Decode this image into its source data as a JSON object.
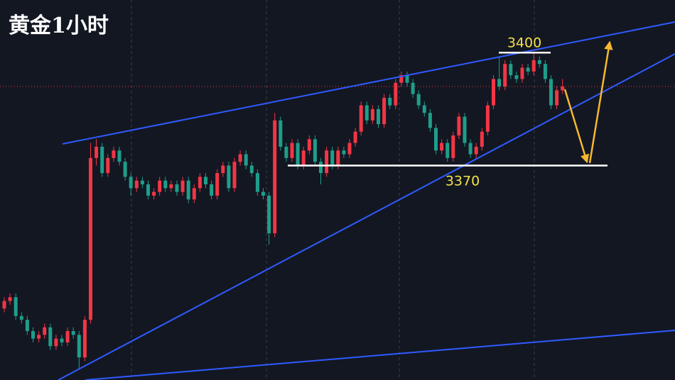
{
  "chart_data": {
    "type": "candlestick",
    "title": "黄金1小时",
    "up_color": "#f23645",
    "down_color": "#1f9e8a",
    "ylim": [
      3313,
      3414
    ],
    "levels": [
      3400,
      3370
    ],
    "last_price": 3391,
    "open": [
      3332,
      3334,
      3335,
      3330,
      3329,
      3326,
      3324,
      3325,
      3327,
      3322,
      3324,
      3323,
      3326,
      3325,
      3319,
      3329,
      3372,
      3375,
      3368,
      3372,
      3374,
      3371,
      3367,
      3364,
      3366,
      3365,
      3362,
      3363,
      3366,
      3364,
      3365,
      3363,
      3366,
      3361,
      3364,
      3367,
      3365,
      3362,
      3368,
      3370,
      3364,
      3371,
      3373,
      3370,
      3368,
      3363,
      3362,
      3352,
      3382,
      3375,
      3372,
      3376,
      3370,
      3374,
      3377,
      3371,
      3368,
      3374,
      3370,
      3374,
      3373,
      3376,
      3379,
      3386,
      3382,
      3385,
      3381,
      3388,
      3386,
      3392,
      3394,
      3392,
      3389,
      3386,
      3384,
      3380,
      3374,
      3376,
      3372,
      3378,
      3383,
      3376,
      3373,
      3375,
      3379,
      3386,
      3393,
      3391,
      3397,
      3394,
      3393,
      3396,
      3395,
      3398,
      3397,
      3393,
      3386,
      3390
    ],
    "high": [
      3335,
      3336,
      3336,
      3331,
      3330,
      3327,
      3326,
      3328,
      3328,
      3325,
      3325,
      3327,
      3327,
      3326,
      3330,
      3376,
      3377,
      3376,
      3373,
      3375,
      3375,
      3372,
      3368,
      3367,
      3367,
      3366,
      3364,
      3367,
      3367,
      3366,
      3366,
      3367,
      3367,
      3365,
      3368,
      3368,
      3366,
      3369,
      3371,
      3371,
      3372,
      3374,
      3374,
      3371,
      3369,
      3364,
      3363,
      3384,
      3383,
      3376,
      3377,
      3377,
      3375,
      3378,
      3378,
      3372,
      3375,
      3375,
      3375,
      3375,
      3377,
      3380,
      3387,
      3387,
      3386,
      3386,
      3389,
      3389,
      3393,
      3395,
      3395,
      3393,
      3390,
      3387,
      3385,
      3381,
      3377,
      3377,
      3379,
      3384,
      3384,
      3377,
      3376,
      3380,
      3387,
      3394,
      3399,
      3398,
      3398,
      3395,
      3397,
      3397,
      3400,
      3399,
      3398,
      3394,
      3391,
      3393
    ],
    "low": [
      3331,
      3333,
      3329,
      3328,
      3325,
      3323,
      3323,
      3324,
      3321,
      3321,
      3322,
      3322,
      3324,
      3316,
      3318,
      3328,
      3370,
      3367,
      3367,
      3371,
      3370,
      3366,
      3362,
      3363,
      3364,
      3361,
      3361,
      3362,
      3363,
      3363,
      3362,
      3362,
      3360,
      3360,
      3363,
      3364,
      3361,
      3361,
      3367,
      3363,
      3363,
      3370,
      3369,
      3367,
      3362,
      3361,
      3349,
      3351,
      3374,
      3371,
      3371,
      3369,
      3369,
      3373,
      3370,
      3365,
      3367,
      3369,
      3369,
      3372,
      3372,
      3375,
      3378,
      3381,
      3381,
      3380,
      3380,
      3385,
      3385,
      3391,
      3391,
      3388,
      3385,
      3383,
      3379,
      3373,
      3373,
      3371,
      3371,
      3377,
      3375,
      3372,
      3372,
      3374,
      3378,
      3385,
      3390,
      3390,
      3393,
      3392,
      3392,
      3394,
      3394,
      3396,
      3392,
      3385,
      3385,
      3389
    ],
    "close": [
      3334,
      3335,
      3330,
      3329,
      3326,
      3324,
      3325,
      3327,
      3322,
      3324,
      3323,
      3326,
      3325,
      3319,
      3329,
      3372,
      3375,
      3368,
      3372,
      3374,
      3371,
      3367,
      3364,
      3366,
      3365,
      3362,
      3363,
      3366,
      3364,
      3365,
      3363,
      3366,
      3361,
      3364,
      3367,
      3365,
      3362,
      3368,
      3370,
      3364,
      3371,
      3373,
      3370,
      3368,
      3363,
      3362,
      3352,
      3382,
      3375,
      3372,
      3376,
      3370,
      3374,
      3377,
      3371,
      3368,
      3374,
      3370,
      3374,
      3373,
      3376,
      3379,
      3386,
      3382,
      3385,
      3381,
      3388,
      3386,
      3392,
      3394,
      3392,
      3389,
      3386,
      3384,
      3380,
      3374,
      3376,
      3372,
      3378,
      3383,
      3376,
      3373,
      3375,
      3379,
      3386,
      3393,
      3391,
      3397,
      3394,
      3393,
      3396,
      3395,
      3398,
      3397,
      3393,
      3386,
      3390,
      3391
    ]
  }
}
